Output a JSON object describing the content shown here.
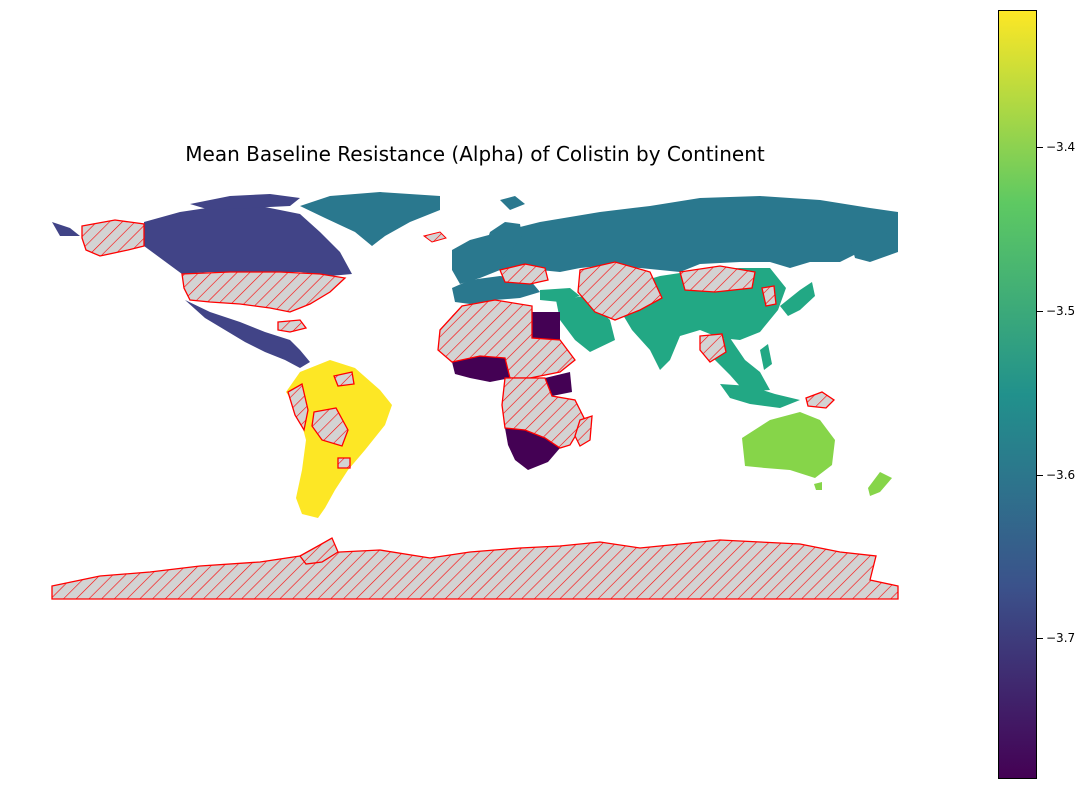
{
  "title": "Mean Baseline Resistance (Alpha) of Colistin by Continent",
  "colorbar": {
    "ticks": [
      {
        "value": -3.4,
        "label": "−3.4"
      },
      {
        "value": -3.5,
        "label": "−3.5"
      },
      {
        "value": -3.6,
        "label": "−3.6"
      },
      {
        "value": -3.7,
        "label": "−3.7"
      }
    ],
    "range": [
      -3.786,
      -3.316
    ],
    "colormap": "viridis",
    "colormap_stops": [
      "#440154",
      "#3b528b",
      "#21918c",
      "#5ec962",
      "#fde725"
    ]
  },
  "chart_data": {
    "type": "choropleth",
    "title": "Mean Baseline Resistance (Alpha) of Colistin by Continent",
    "variable": "Mean Baseline Resistance (Alpha) of Colistin",
    "regions": [
      {
        "name": "South America",
        "value": -3.32,
        "color": "#fde725"
      },
      {
        "name": "Oceania",
        "value": -3.42,
        "color": "#86d549"
      },
      {
        "name": "Asia",
        "value": -3.5,
        "color": "#22a884"
      },
      {
        "name": "Europe",
        "value": -3.6,
        "color": "#2a788e"
      },
      {
        "name": "North America",
        "value": -3.7,
        "color": "#414487"
      },
      {
        "name": "Africa",
        "value": -3.78,
        "color": "#440154"
      }
    ],
    "missing_data": {
      "style": "hatched",
      "fill": "#d3d3d3",
      "edge_color": "#ff0000"
    }
  }
}
